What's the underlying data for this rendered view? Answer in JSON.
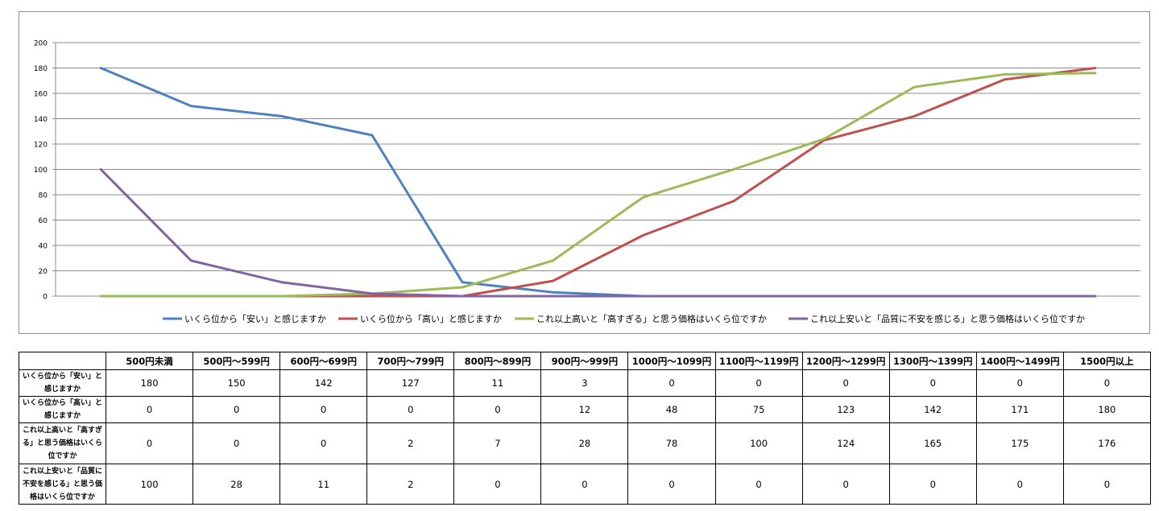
{
  "chart_data": {
    "type": "line",
    "categories": [
      "500円未満",
      "500円～599円",
      "600円～699円",
      "700円～799円",
      "800円～899円",
      "900円～999円",
      "1000円～1099円",
      "1100円～1199円",
      "1200円～1299円",
      "1300円～1399円",
      "1400円～1499円",
      "1500円以上"
    ],
    "ylim": [
      0,
      200
    ],
    "yticks": [
      0,
      20,
      40,
      60,
      80,
      100,
      120,
      140,
      160,
      180,
      200
    ],
    "grid": true,
    "legend": "bottom",
    "series": [
      {
        "name": "いくら位から「安い」と感じますか",
        "color": "#4f81bd",
        "values": [
          180,
          150,
          142,
          127,
          11,
          3,
          0,
          0,
          0,
          0,
          0,
          0
        ]
      },
      {
        "name": "いくら位から「高い」と感じますか",
        "color": "#c0504d",
        "values": [
          0,
          0,
          0,
          0,
          0,
          12,
          48,
          75,
          123,
          142,
          171,
          180
        ]
      },
      {
        "name": "これ以上高いと「高すぎる」と思う価格はいくら位ですか",
        "color": "#9bbb59",
        "values": [
          0,
          0,
          0,
          2,
          7,
          28,
          78,
          100,
          124,
          165,
          175,
          176
        ]
      },
      {
        "name": "これ以上安いと「品質に不安を感じる」と思う価格はいくら位ですか",
        "color": "#8064a2",
        "values": [
          100,
          28,
          11,
          2,
          0,
          0,
          0,
          0,
          0,
          0,
          0,
          0
        ]
      }
    ]
  },
  "table": {
    "headers": [
      "",
      "500円未満",
      "500円～599円",
      "600円～699円",
      "700円～799円",
      "800円～899円",
      "900円～999円",
      "1000円～1099円",
      "1100円～1199円",
      "1200円～1299円",
      "1300円～1399円",
      "1400円～1499円",
      "1500円以上"
    ],
    "rows": [
      {
        "label_lines": [
          "いくら位から「安い」と",
          "感じますか"
        ],
        "values": [
          "180",
          "150",
          "142",
          "127",
          "11",
          "3",
          "0",
          "0",
          "0",
          "0",
          "0",
          "0"
        ]
      },
      {
        "label_lines": [
          "いくら位から「高い」と",
          "感じますか"
        ],
        "values": [
          "0",
          "0",
          "0",
          "0",
          "0",
          "12",
          "48",
          "75",
          "123",
          "142",
          "171",
          "180"
        ]
      },
      {
        "label_lines": [
          "これ以上高いと「高すぎ",
          "る」と思う価格はいくら",
          "位ですか"
        ],
        "values": [
          "0",
          "0",
          "0",
          "2",
          "7",
          "28",
          "78",
          "100",
          "124",
          "165",
          "175",
          "176"
        ]
      },
      {
        "label_lines": [
          "これ以上安いと「品質に",
          "不安を感じる」と思う価",
          "格はいくら位ですか"
        ],
        "values": [
          "100",
          "28",
          "11",
          "2",
          "0",
          "0",
          "0",
          "0",
          "0",
          "0",
          "0",
          "0"
        ]
      }
    ]
  }
}
